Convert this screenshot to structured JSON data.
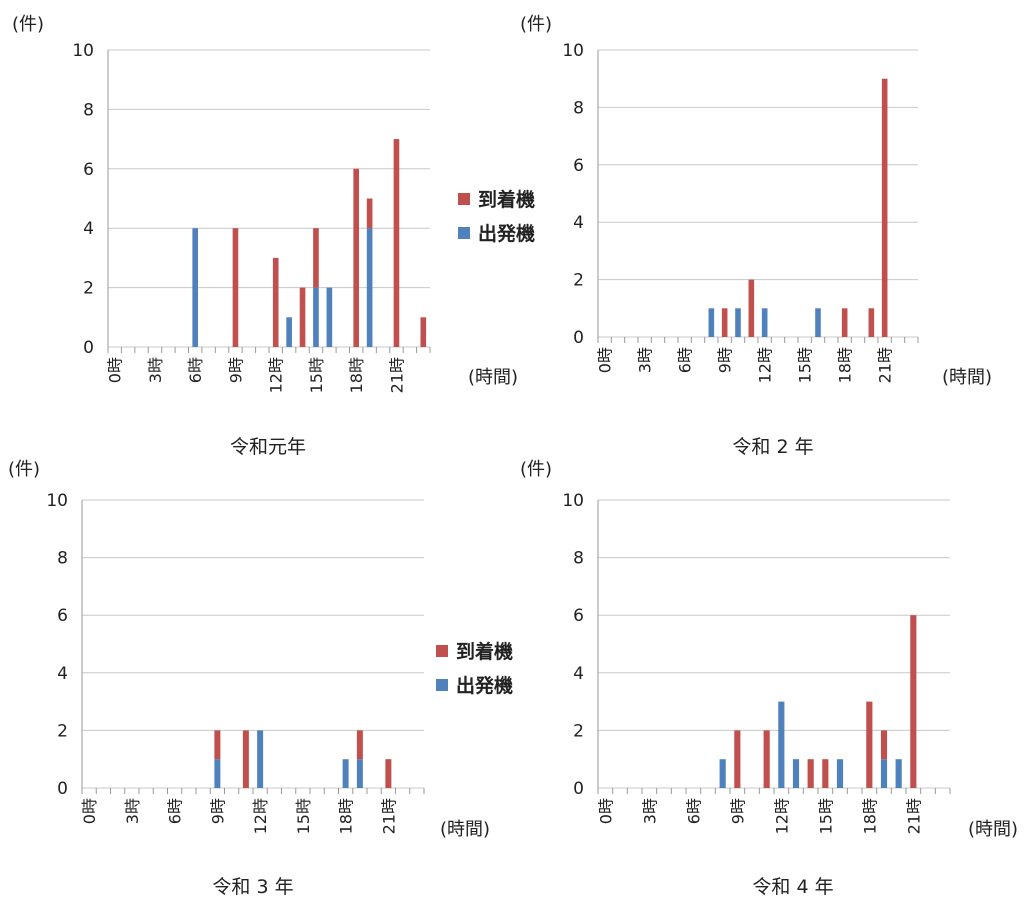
{
  "legend": {
    "arrival": "到着機",
    "departure": "出発機",
    "arrival_color": "#c0504d",
    "departure_color": "#4f81bd"
  },
  "chart_data": [
    {
      "type": "bar",
      "stacked": true,
      "title": "令和元年",
      "y_unit": "(件)",
      "x_unit": "(時間)",
      "ylim": [
        0,
        10
      ],
      "y_ticks": [
        0,
        2,
        4,
        6,
        8,
        10
      ],
      "x_tick_labels": [
        "0時",
        "3時",
        "6時",
        "9時",
        "12時",
        "15時",
        "18時",
        "21時"
      ],
      "hours": [
        0,
        1,
        2,
        3,
        4,
        5,
        6,
        7,
        8,
        9,
        10,
        11,
        12,
        13,
        14,
        15,
        16,
        17,
        18,
        19,
        20,
        21,
        22,
        23
      ],
      "series": [
        {
          "name": "出発機",
          "values": [
            0,
            0,
            0,
            0,
            0,
            0,
            4,
            0,
            0,
            0,
            0,
            0,
            0,
            1,
            0,
            2,
            2,
            0,
            0,
            4,
            0,
            0,
            0,
            0
          ]
        },
        {
          "name": "到着機",
          "values": [
            0,
            0,
            0,
            0,
            0,
            0,
            0,
            0,
            0,
            4,
            0,
            0,
            3,
            0,
            2,
            2,
            0,
            0,
            6,
            1,
            0,
            7,
            0,
            1
          ]
        }
      ],
      "grid": true,
      "legend": "right"
    },
    {
      "type": "bar",
      "stacked": true,
      "title": "令和 2 年",
      "y_unit": "(件)",
      "x_unit": "(時間)",
      "ylim": [
        0,
        10
      ],
      "y_ticks": [
        0,
        2,
        4,
        6,
        8,
        10
      ],
      "x_tick_labels": [
        "0時",
        "3時",
        "6時",
        "9時",
        "12時",
        "15時",
        "18時",
        "21時"
      ],
      "hours": [
        0,
        1,
        2,
        3,
        4,
        5,
        6,
        7,
        8,
        9,
        10,
        11,
        12,
        13,
        14,
        15,
        16,
        17,
        18,
        19,
        20,
        21,
        22,
        23
      ],
      "series": [
        {
          "name": "出発機",
          "values": [
            0,
            0,
            0,
            0,
            0,
            0,
            0,
            0,
            1,
            0,
            1,
            0,
            1,
            0,
            0,
            0,
            1,
            0,
            0,
            0,
            0,
            0,
            0,
            0
          ]
        },
        {
          "name": "到着機",
          "values": [
            0,
            0,
            0,
            0,
            0,
            0,
            0,
            0,
            0,
            1,
            0,
            2,
            0,
            0,
            0,
            0,
            0,
            0,
            1,
            0,
            1,
            9,
            0,
            0
          ]
        }
      ],
      "grid": true,
      "legend": "none"
    },
    {
      "type": "bar",
      "stacked": true,
      "title": "令和 3 年",
      "y_unit": "(件)",
      "x_unit": "(時間)",
      "ylim": [
        0,
        10
      ],
      "y_ticks": [
        0,
        2,
        4,
        6,
        8,
        10
      ],
      "x_tick_labels": [
        "0時",
        "3時",
        "6時",
        "9時",
        "12時",
        "15時",
        "18時",
        "21時"
      ],
      "hours": [
        0,
        1,
        2,
        3,
        4,
        5,
        6,
        7,
        8,
        9,
        10,
        11,
        12,
        13,
        14,
        15,
        16,
        17,
        18,
        19,
        20,
        21,
        22,
        23
      ],
      "series": [
        {
          "name": "出発機",
          "values": [
            0,
            0,
            0,
            0,
            0,
            0,
            0,
            0,
            0,
            1,
            0,
            0,
            2,
            0,
            0,
            0,
            0,
            0,
            1,
            1,
            0,
            0,
            0,
            0
          ]
        },
        {
          "name": "到着機",
          "values": [
            0,
            0,
            0,
            0,
            0,
            0,
            0,
            0,
            0,
            1,
            0,
            2,
            0,
            0,
            0,
            0,
            0,
            0,
            0,
            1,
            0,
            1,
            0,
            0
          ]
        }
      ],
      "grid": true,
      "legend": "right"
    },
    {
      "type": "bar",
      "stacked": true,
      "title": "令和 4 年",
      "y_unit": "(件)",
      "x_unit": "(時間)",
      "ylim": [
        0,
        10
      ],
      "y_ticks": [
        0,
        2,
        4,
        6,
        8,
        10
      ],
      "x_tick_labels": [
        "0時",
        "3時",
        "6時",
        "9時",
        "12時",
        "15時",
        "18時",
        "21時"
      ],
      "hours": [
        0,
        1,
        2,
        3,
        4,
        5,
        6,
        7,
        8,
        9,
        10,
        11,
        12,
        13,
        14,
        15,
        16,
        17,
        18,
        19,
        20,
        21,
        22,
        23
      ],
      "series": [
        {
          "name": "出発機",
          "values": [
            0,
            0,
            0,
            0,
            0,
            0,
            0,
            0,
            1,
            0,
            0,
            0,
            3,
            1,
            0,
            0,
            1,
            0,
            0,
            1,
            1,
            0,
            0,
            0
          ]
        },
        {
          "name": "到着機",
          "values": [
            0,
            0,
            0,
            0,
            0,
            0,
            0,
            0,
            0,
            2,
            0,
            2,
            0,
            0,
            1,
            1,
            0,
            0,
            3,
            1,
            0,
            6,
            0,
            0
          ]
        }
      ],
      "grid": true,
      "legend": "none"
    }
  ]
}
